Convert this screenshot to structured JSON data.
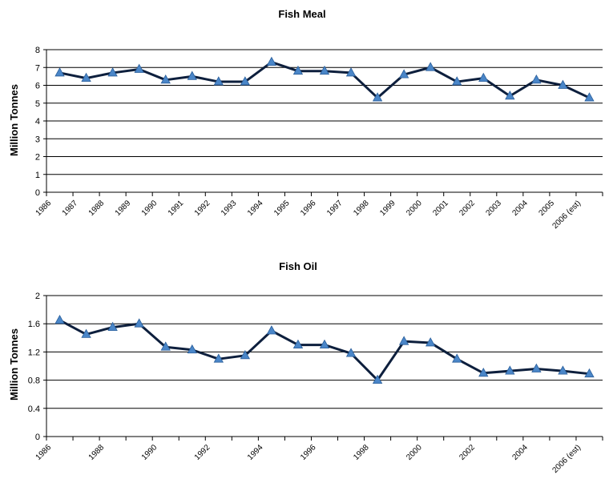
{
  "chart_data": [
    {
      "type": "line",
      "title": "Fish Meal",
      "ylabel": "Million Tonnes",
      "ylim": [
        0,
        8
      ],
      "yticks": [
        "0",
        "1",
        "2",
        "3",
        "4",
        "5",
        "6",
        "7",
        "8"
      ],
      "grid": true,
      "categories": [
        "1986",
        "1987",
        "1988",
        "1989",
        "1990",
        "1991",
        "1992",
        "1993",
        "1994",
        "1995",
        "1996",
        "1997",
        "1998",
        "1999",
        "2000",
        "2001",
        "2002",
        "2003",
        "2004",
        "2005",
        "2006 (est)"
      ],
      "series": [
        {
          "values": [
            6.7,
            6.4,
            6.7,
            6.9,
            6.3,
            6.5,
            6.2,
            6.2,
            7.3,
            6.8,
            6.8,
            6.7,
            5.3,
            6.6,
            7.0,
            6.2,
            6.4,
            5.4,
            6.3,
            6.0,
            5.3
          ]
        }
      ],
      "colors": {
        "line": "#0d1f3d",
        "marker": "#4a86c8"
      }
    },
    {
      "type": "line",
      "title": "Fish Oil",
      "ylabel": "Million Tonnes",
      "ylim": [
        0,
        2
      ],
      "yticks": [
        "0",
        "0.4",
        "0.8",
        "1.2",
        "1.6",
        "2"
      ],
      "grid": true,
      "categories": [
        "1986",
        "1987",
        "1988",
        "1989",
        "1990",
        "1991",
        "1992",
        "1993",
        "1994",
        "1995",
        "1996",
        "1997",
        "1998",
        "1999",
        "2000",
        "2001",
        "2002",
        "2003",
        "2004",
        "2005",
        "2006 (est)"
      ],
      "xtick_labels": [
        "1986",
        "",
        "1988",
        "",
        "1990",
        "",
        "1992",
        "",
        "1994",
        "",
        "1996",
        "",
        "1998",
        "",
        "2000",
        "",
        "2002",
        "",
        "2004",
        "",
        "2006 (est)"
      ],
      "series": [
        {
          "values": [
            1.65,
            1.45,
            1.55,
            1.6,
            1.27,
            1.23,
            1.1,
            1.15,
            1.5,
            1.3,
            1.3,
            1.18,
            0.8,
            1.35,
            1.33,
            1.1,
            0.9,
            0.93,
            0.96,
            0.93,
            0.89
          ]
        }
      ],
      "colors": {
        "line": "#0d1f3d",
        "marker": "#4a86c8"
      }
    }
  ]
}
